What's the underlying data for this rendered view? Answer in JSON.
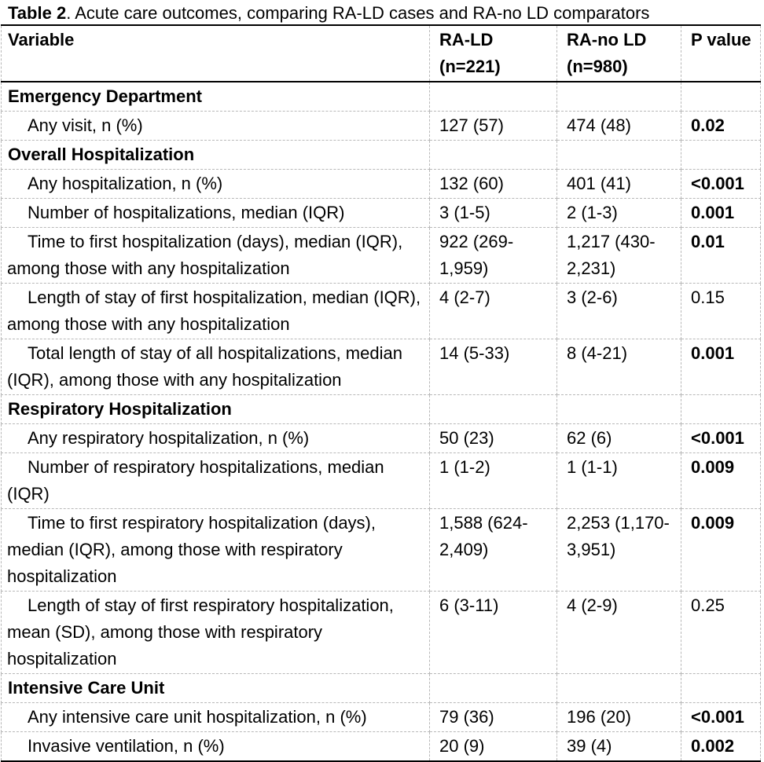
{
  "title": {
    "bold": "Table 2",
    "rest": ". Acute care outcomes, comparing RA-LD cases and RA-no LD comparators"
  },
  "table": {
    "columns": [
      {
        "id": "variable",
        "label": "Variable"
      },
      {
        "id": "ra_ld",
        "label": "RA-LD\n(n=221)"
      },
      {
        "id": "ra_no_ld",
        "label": "RA-no LD\n(n=980)"
      },
      {
        "id": "p_value",
        "label": "P value"
      }
    ],
    "rows": [
      {
        "type": "section",
        "variable": "Emergency Department"
      },
      {
        "type": "data",
        "variable": "Any visit, n (%)",
        "ra_ld": "127 (57)",
        "ra_no_ld": "474 (48)",
        "p_value": "0.02",
        "p_bold": true
      },
      {
        "type": "section",
        "variable": "Overall Hospitalization"
      },
      {
        "type": "data",
        "variable": "Any hospitalization, n (%)",
        "ra_ld": "132 (60)",
        "ra_no_ld": "401 (41)",
        "p_value": "<0.001",
        "p_bold": true
      },
      {
        "type": "data",
        "variable": "Number of hospitalizations, median (IQR)",
        "ra_ld": "3 (1-5)",
        "ra_no_ld": "2 (1-3)",
        "p_value": "0.001",
        "p_bold": true
      },
      {
        "type": "data",
        "variable": "Time to first hospitalization (days), median (IQR), among those with any hospitalization",
        "ra_ld": "922 (269-1,959)",
        "ra_no_ld": "1,217 (430-2,231)",
        "p_value": "0.01",
        "p_bold": true
      },
      {
        "type": "data",
        "variable": "Length of stay of first hospitalization, median (IQR), among those with any hospitalization",
        "ra_ld": "4 (2-7)",
        "ra_no_ld": "3 (2-6)",
        "p_value": "0.15",
        "p_bold": false
      },
      {
        "type": "data",
        "variable": "Total length of stay of all hospitalizations, median (IQR), among those with any hospitalization",
        "ra_ld": "14 (5-33)",
        "ra_no_ld": "8 (4-21)",
        "p_value": "0.001",
        "p_bold": true
      },
      {
        "type": "section",
        "variable": "Respiratory Hospitalization"
      },
      {
        "type": "data",
        "variable": "Any respiratory hospitalization, n (%)",
        "ra_ld": "50 (23)",
        "ra_no_ld": "62 (6)",
        "p_value": "<0.001",
        "p_bold": true
      },
      {
        "type": "data",
        "variable": "Number of respiratory hospitalizations, median (IQR)",
        "ra_ld": "1 (1-2)",
        "ra_no_ld": "1 (1-1)",
        "p_value": "0.009",
        "p_bold": true
      },
      {
        "type": "data",
        "variable": "Time to first respiratory hospitalization (days), median (IQR), among those with respiratory hospitalization",
        "ra_ld": "1,588 (624-2,409)",
        "ra_no_ld": "2,253 (1,170-3,951)",
        "p_value": "0.009",
        "p_bold": true
      },
      {
        "type": "data",
        "variable": "Length of stay of first respiratory hospitalization, mean (SD), among those with respiratory hospitalization",
        "ra_ld": "6 (3-11)",
        "ra_no_ld": "4 (2-9)",
        "p_value": "0.25",
        "p_bold": false
      },
      {
        "type": "section",
        "variable": "Intensive Care Unit"
      },
      {
        "type": "data",
        "variable": "Any intensive care unit hospitalization, n (%)",
        "ra_ld": "79 (36)",
        "ra_no_ld": "196 (20)",
        "p_value": "<0.001",
        "p_bold": true
      },
      {
        "type": "data",
        "variable": "Invasive ventilation, n (%)",
        "ra_ld": "20 (9)",
        "ra_no_ld": "39 (4)",
        "p_value": "0.002",
        "p_bold": true
      }
    ]
  }
}
